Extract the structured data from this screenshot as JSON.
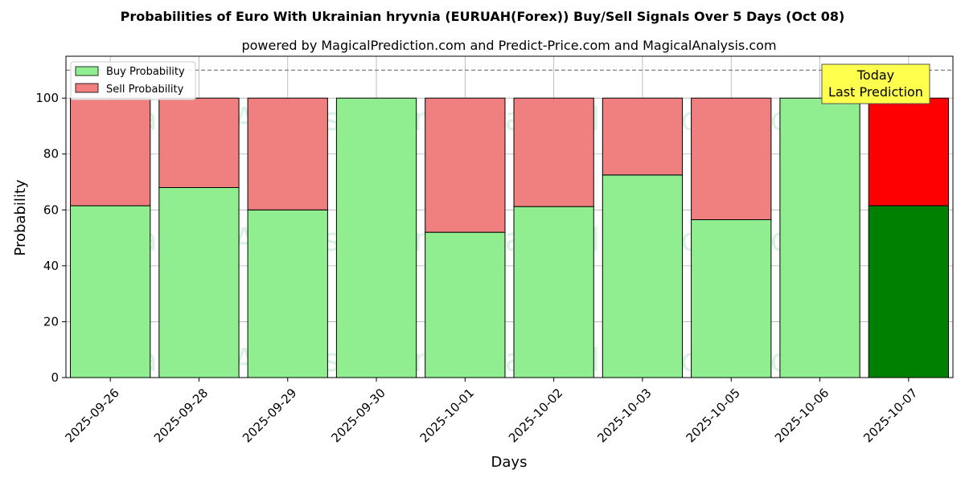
{
  "chart_data": {
    "type": "bar",
    "stacked": true,
    "title": "Probabilities of Euro With Ukrainian hryvnia (EURUAH(Forex)) Buy/Sell Signals Over 5 Days (Oct 08)",
    "subtitle": "powered by MagicalPrediction.com and Predict-Price.com and MagicalAnalysis.com",
    "xlabel": "Days",
    "ylabel": "Probability",
    "ylim": [
      0,
      115
    ],
    "yticks": [
      0,
      20,
      40,
      60,
      80,
      100
    ],
    "grid": true,
    "reference_line": 110,
    "categories": [
      "2025-09-26",
      "2025-09-28",
      "2025-09-29",
      "2025-09-30",
      "2025-10-01",
      "2025-10-02",
      "2025-10-03",
      "2025-10-05",
      "2025-10-06",
      "2025-10-07"
    ],
    "series": [
      {
        "name": "Buy Probability",
        "color": "#90ee90",
        "values": [
          61.5,
          68,
          60,
          100,
          52,
          61.2,
          72.5,
          56.5,
          100,
          61.5
        ]
      },
      {
        "name": "Sell Probability",
        "color": "#f08080",
        "values": [
          38.5,
          32,
          40,
          0,
          48,
          38.8,
          27.5,
          43.5,
          0,
          38.5
        ]
      }
    ],
    "highlight": {
      "index": 9,
      "buy_color": "#008000",
      "sell_color": "#ff0000"
    },
    "legend": {
      "placement": "top-left"
    },
    "annotation": {
      "lines": [
        "Today",
        "Last Prediction"
      ],
      "background": "#ffff4d"
    },
    "watermarks": [
      "MagicalAnalysis.com",
      "MagicalPrediction.com"
    ]
  }
}
